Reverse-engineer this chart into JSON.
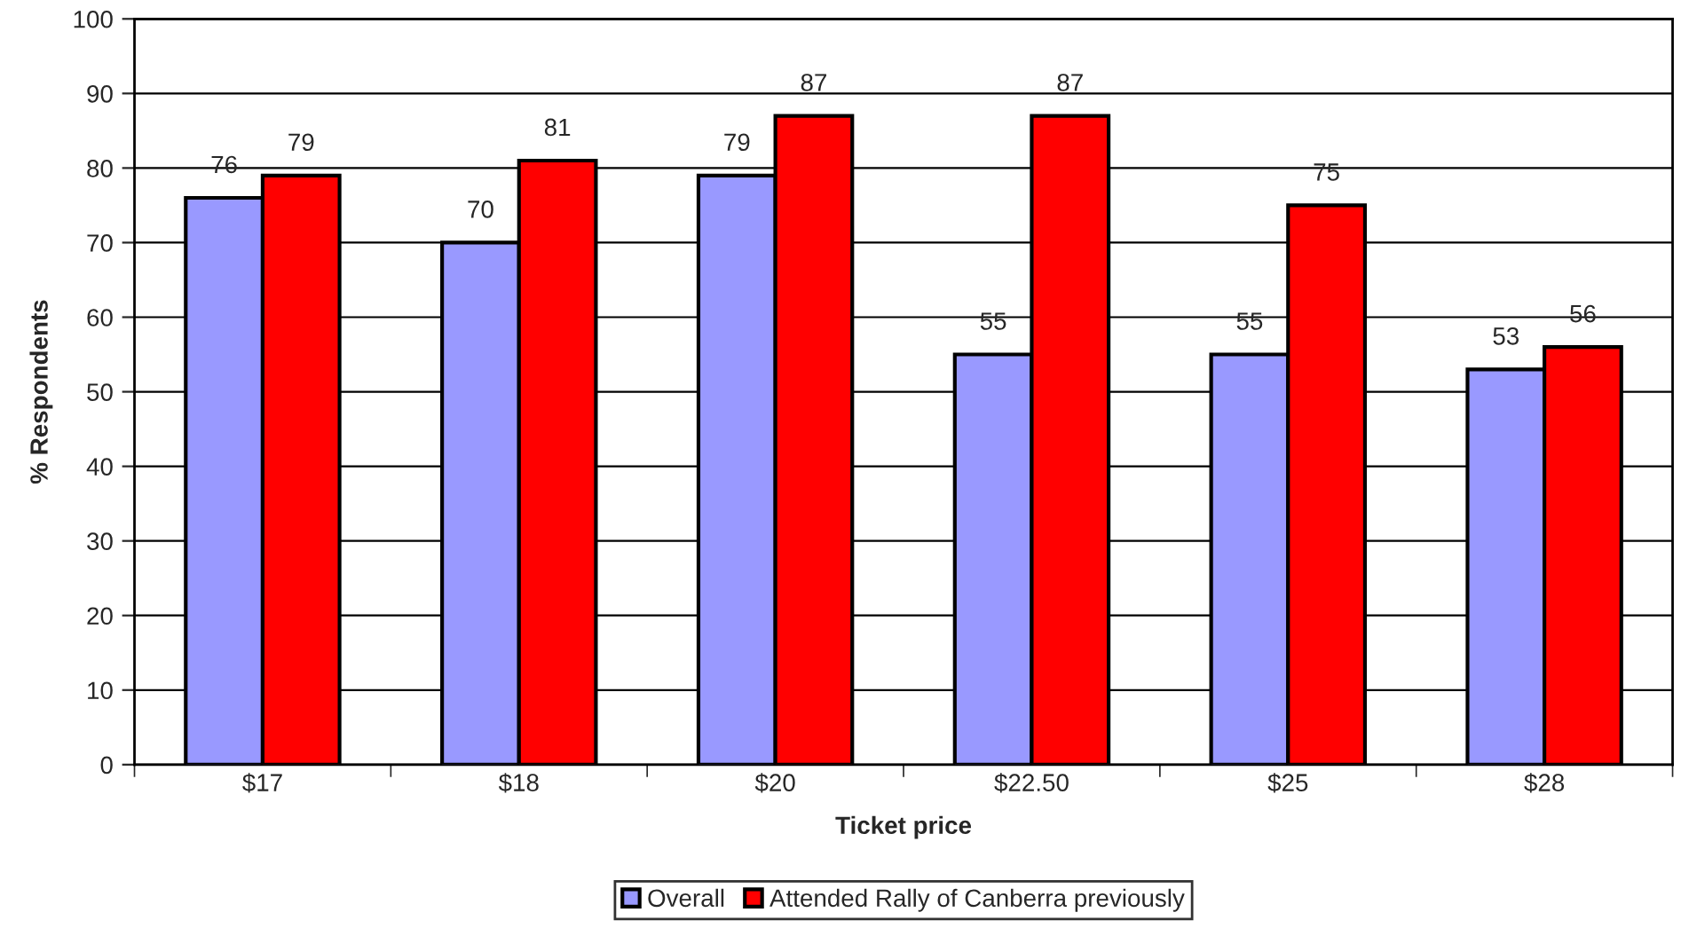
{
  "chart_data": {
    "type": "bar",
    "xlabel": "Ticket price",
    "ylabel": "% Respondents",
    "categories": [
      "$17",
      "$18",
      "$20",
      "$22.50",
      "$25",
      "$28"
    ],
    "series": [
      {
        "name": "Overall",
        "color": "#9999ff",
        "values": [
          76,
          70,
          79,
          55,
          55,
          53
        ]
      },
      {
        "name": "Attended Rally of Canberra previously",
        "color": "#ff0000",
        "values": [
          79,
          81,
          87,
          87,
          75,
          56
        ]
      }
    ],
    "ylim": [
      0,
      100
    ],
    "yticks": [
      0,
      10,
      20,
      30,
      40,
      50,
      60,
      70,
      80,
      90,
      100
    ],
    "grid": "y",
    "legend": "bottom",
    "data_labels": true
  }
}
